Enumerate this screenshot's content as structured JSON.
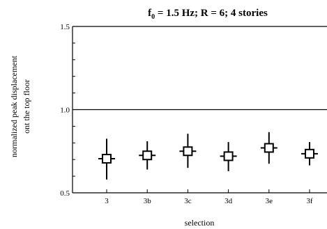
{
  "chart_data": {
    "type": "scatter",
    "title": {
      "lead": "f",
      "sub": "0",
      "rest": " = 1.5 Hz; R = 6; 4 stories"
    },
    "xlabel": "selection",
    "ylabel_lines": [
      "normalized peak displacement",
      "ont the top floor"
    ],
    "categories": [
      "3",
      "3b",
      "3c",
      "3d",
      "3e",
      "3f"
    ],
    "ylim": [
      0.5,
      1.5
    ],
    "yticks": [
      {
        "value": 0.5,
        "label": "0.5"
      },
      {
        "value": 1.0,
        "label": "1.0"
      },
      {
        "value": 1.5,
        "label": "1.5"
      }
    ],
    "reference_line": 1.0,
    "series": [
      {
        "marker": "open-square",
        "values": [
          0.705,
          0.725,
          0.75,
          0.72,
          0.77,
          0.735
        ],
        "lower": [
          0.58,
          0.64,
          0.65,
          0.63,
          0.675,
          0.665
        ],
        "upper": [
          0.825,
          0.81,
          0.855,
          0.805,
          0.865,
          0.805
        ]
      }
    ],
    "colors": {
      "ink": "#000000",
      "background": "#ffffff"
    }
  }
}
